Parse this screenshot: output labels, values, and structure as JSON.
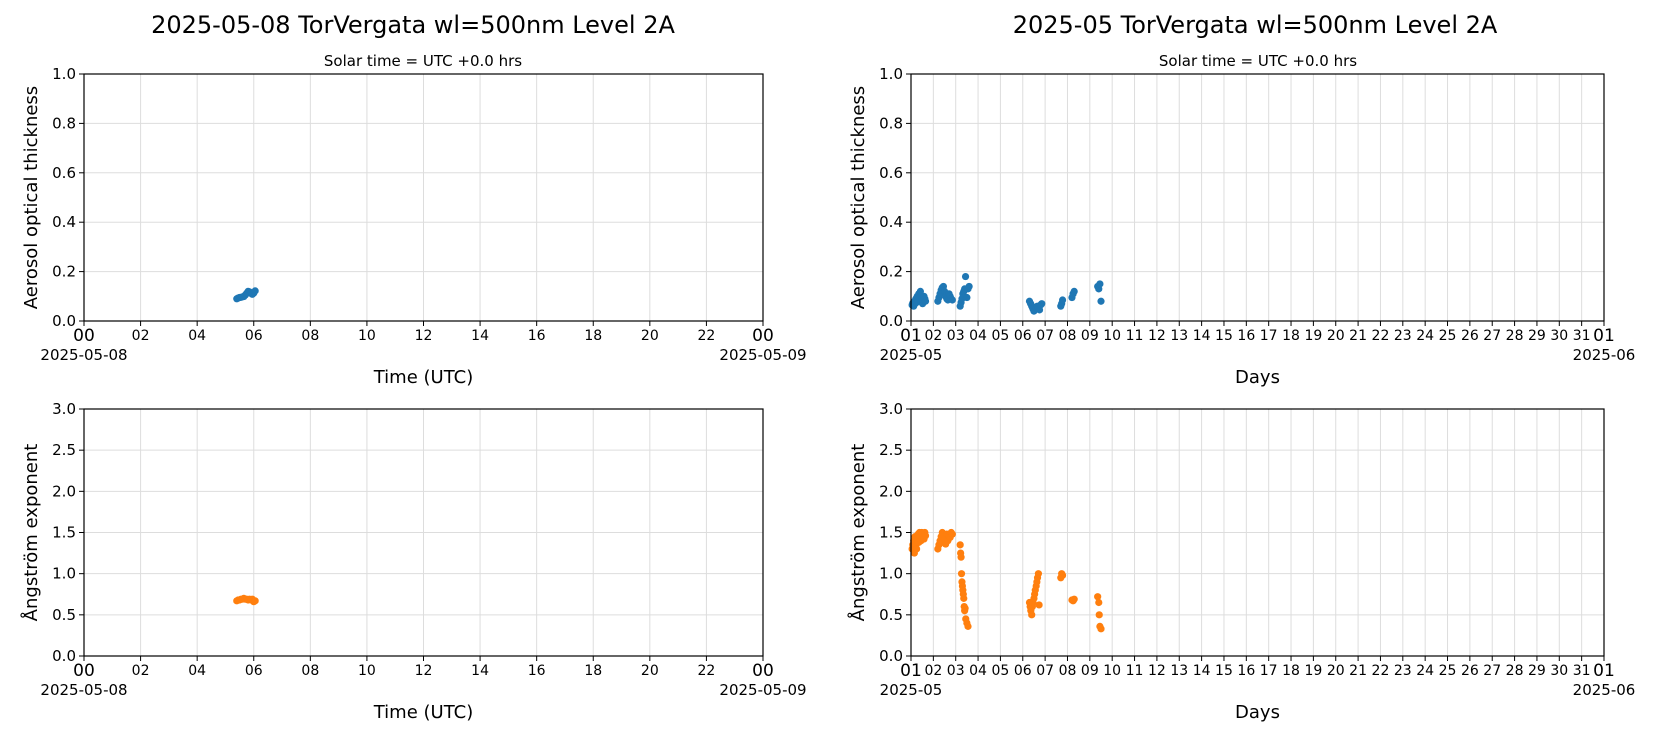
{
  "colors": {
    "aot": "#1f77b4",
    "angstrom": "#ff7f0e"
  },
  "panels_top": [
    {
      "title": "2025-05-08  TorVergata  wl=500nm  Level 2A",
      "subtitle": "Solar time = UTC +0.0 hrs"
    },
    {
      "title": "2025-05  TorVergata  wl=500nm  Level 2A",
      "subtitle": "Solar time = UTC +0.0 hrs"
    }
  ],
  "chart_data": [
    {
      "type": "scatter",
      "id": "daily-aot",
      "title": "2025-05-08  TorVergata  wl=500nm  Level 2A",
      "subtitle": "Solar time = UTC +0.0 hrs",
      "xlabel": "Time (UTC)",
      "ylabel": "Aerosol optical thickness",
      "x_unit": "hours UTC",
      "xlim": [
        0,
        24
      ],
      "ylim": [
        0,
        1.0
      ],
      "yticks": [
        "0.0",
        "0.2",
        "0.4",
        "0.6",
        "0.8",
        "1.0"
      ],
      "xticks": [
        "00",
        "02",
        "04",
        "06",
        "08",
        "10",
        "12",
        "14",
        "16",
        "18",
        "20",
        "22",
        "00"
      ],
      "x_date_labels": [
        "2025-05-08",
        "2025-05-09"
      ],
      "grid": true,
      "series": [
        {
          "color": "#1f77b4",
          "points": [
            [
              5.4,
              0.09
            ],
            [
              5.45,
              0.093
            ],
            [
              5.5,
              0.095
            ],
            [
              5.55,
              0.096
            ],
            [
              5.6,
              0.098
            ],
            [
              5.65,
              0.099
            ],
            [
              5.7,
              0.105
            ],
            [
              5.75,
              0.112
            ],
            [
              5.8,
              0.12
            ],
            [
              5.85,
              0.118
            ],
            [
              5.9,
              0.112
            ],
            [
              5.95,
              0.108
            ],
            [
              6.0,
              0.113
            ],
            [
              6.05,
              0.122
            ]
          ]
        }
      ]
    },
    {
      "type": "scatter",
      "id": "monthly-aot",
      "title": "2025-05  TorVergata  wl=500nm  Level 2A",
      "subtitle": "Solar time = UTC +0.0 hrs",
      "xlabel": "Days",
      "ylabel": "Aerosol optical thickness",
      "x_unit": "day of month",
      "xlim": [
        1,
        32
      ],
      "ylim": [
        0,
        1.0
      ],
      "yticks": [
        "0.0",
        "0.2",
        "0.4",
        "0.6",
        "0.8",
        "1.0"
      ],
      "xticks": [
        "01",
        "02",
        "03",
        "04",
        "05",
        "06",
        "07",
        "08",
        "09",
        "10",
        "11",
        "12",
        "13",
        "14",
        "15",
        "16",
        "17",
        "18",
        "19",
        "20",
        "21",
        "22",
        "23",
        "24",
        "25",
        "26",
        "27",
        "28",
        "29",
        "30",
        "31",
        "01"
      ],
      "x_date_labels": [
        "2025-05",
        "2025-06"
      ],
      "grid": true,
      "series": [
        {
          "color": "#1f77b4",
          "points": [
            [
              1.05,
              0.065
            ],
            [
              1.08,
              0.072
            ],
            [
              1.12,
              0.06
            ],
            [
              1.15,
              0.08
            ],
            [
              1.18,
              0.07
            ],
            [
              1.22,
              0.09
            ],
            [
              1.25,
              0.075
            ],
            [
              1.28,
              0.1
            ],
            [
              1.32,
              0.085
            ],
            [
              1.35,
              0.11
            ],
            [
              1.38,
              0.095
            ],
            [
              1.42,
              0.12
            ],
            [
              1.45,
              0.08
            ],
            [
              1.48,
              0.09
            ],
            [
              1.52,
              0.07
            ],
            [
              1.55,
              0.085
            ],
            [
              1.58,
              0.1
            ],
            [
              1.62,
              0.09
            ],
            [
              1.65,
              0.08
            ],
            [
              2.2,
              0.08
            ],
            [
              2.25,
              0.095
            ],
            [
              2.3,
              0.11
            ],
            [
              2.35,
              0.125
            ],
            [
              2.4,
              0.135
            ],
            [
              2.45,
              0.14
            ],
            [
              2.5,
              0.12
            ],
            [
              2.55,
              0.1
            ],
            [
              2.6,
              0.09
            ],
            [
              2.65,
              0.085
            ],
            [
              2.7,
              0.11
            ],
            [
              2.75,
              0.1
            ],
            [
              2.8,
              0.09
            ],
            [
              2.85,
              0.085
            ],
            [
              3.2,
              0.06
            ],
            [
              3.24,
              0.075
            ],
            [
              3.28,
              0.09
            ],
            [
              3.32,
              0.11
            ],
            [
              3.36,
              0.12
            ],
            [
              3.4,
              0.13
            ],
            [
              3.44,
              0.18
            ],
            [
              3.5,
              0.095
            ],
            [
              3.55,
              0.13
            ],
            [
              3.6,
              0.14
            ],
            [
              6.3,
              0.08
            ],
            [
              6.35,
              0.07
            ],
            [
              6.4,
              0.06
            ],
            [
              6.45,
              0.05
            ],
            [
              6.5,
              0.04
            ],
            [
              6.55,
              0.045
            ],
            [
              6.6,
              0.05
            ],
            [
              6.65,
              0.06
            ],
            [
              6.7,
              0.055
            ],
            [
              6.75,
              0.045
            ],
            [
              6.8,
              0.065
            ],
            [
              6.85,
              0.07
            ],
            [
              7.7,
              0.06
            ],
            [
              7.74,
              0.07
            ],
            [
              7.78,
              0.085
            ],
            [
              8.2,
              0.095
            ],
            [
              8.25,
              0.11
            ],
            [
              8.3,
              0.12
            ],
            [
              9.35,
              0.14
            ],
            [
              9.4,
              0.13
            ],
            [
              9.45,
              0.15
            ],
            [
              9.5,
              0.08
            ]
          ]
        }
      ]
    },
    {
      "type": "scatter",
      "id": "daily-angstrom",
      "xlabel": "Time (UTC)",
      "ylabel": "Ångström exponent",
      "x_unit": "hours UTC",
      "xlim": [
        0,
        24
      ],
      "ylim": [
        0,
        3.0
      ],
      "yticks": [
        "0.0",
        "0.5",
        "1.0",
        "1.5",
        "2.0",
        "2.5",
        "3.0"
      ],
      "xticks": [
        "00",
        "02",
        "04",
        "06",
        "08",
        "10",
        "12",
        "14",
        "16",
        "18",
        "20",
        "22",
        "00"
      ],
      "x_date_labels": [
        "2025-05-08",
        "2025-05-09"
      ],
      "grid": true,
      "series": [
        {
          "color": "#ff7f0e",
          "points": [
            [
              5.4,
              0.67
            ],
            [
              5.45,
              0.68
            ],
            [
              5.5,
              0.68
            ],
            [
              5.55,
              0.69
            ],
            [
              5.6,
              0.69
            ],
            [
              5.65,
              0.7
            ],
            [
              5.7,
              0.69
            ],
            [
              5.75,
              0.69
            ],
            [
              5.8,
              0.68
            ],
            [
              5.85,
              0.69
            ],
            [
              5.9,
              0.68
            ],
            [
              5.95,
              0.69
            ],
            [
              6.0,
              0.66
            ],
            [
              6.05,
              0.67
            ]
          ]
        }
      ]
    },
    {
      "type": "scatter",
      "id": "monthly-angstrom",
      "xlabel": "Days",
      "ylabel": "Ångström exponent",
      "x_unit": "day of month",
      "xlim": [
        1,
        32
      ],
      "ylim": [
        0,
        3.0
      ],
      "yticks": [
        "0.0",
        "0.5",
        "1.0",
        "1.5",
        "2.0",
        "2.5",
        "3.0"
      ],
      "xticks": [
        "01",
        "02",
        "03",
        "04",
        "05",
        "06",
        "07",
        "08",
        "09",
        "10",
        "11",
        "12",
        "13",
        "14",
        "15",
        "16",
        "17",
        "18",
        "19",
        "20",
        "21",
        "22",
        "23",
        "24",
        "25",
        "26",
        "27",
        "28",
        "29",
        "30",
        "31",
        "01"
      ],
      "x_date_labels": [
        "2025-05",
        "2025-06"
      ],
      "grid": true,
      "series": [
        {
          "color": "#ff7f0e",
          "points": [
            [
              1.05,
              1.3
            ],
            [
              1.08,
              1.35
            ],
            [
              1.12,
              1.4
            ],
            [
              1.15,
              1.25
            ],
            [
              1.18,
              1.45
            ],
            [
              1.22,
              1.35
            ],
            [
              1.25,
              1.3
            ],
            [
              1.28,
              1.42
            ],
            [
              1.32,
              1.48
            ],
            [
              1.35,
              1.38
            ],
            [
              1.38,
              1.5
            ],
            [
              1.42,
              1.45
            ],
            [
              1.45,
              1.4
            ],
            [
              1.48,
              1.5
            ],
            [
              1.52,
              1.48
            ],
            [
              1.55,
              1.45
            ],
            [
              1.58,
              1.42
            ],
            [
              1.62,
              1.5
            ],
            [
              1.65,
              1.46
            ],
            [
              2.2,
              1.3
            ],
            [
              2.25,
              1.35
            ],
            [
              2.3,
              1.4
            ],
            [
              2.35,
              1.45
            ],
            [
              2.4,
              1.5
            ],
            [
              2.45,
              1.38
            ],
            [
              2.5,
              1.42
            ],
            [
              2.55,
              1.36
            ],
            [
              2.6,
              1.48
            ],
            [
              2.65,
              1.4
            ],
            [
              2.7,
              1.46
            ],
            [
              2.75,
              1.44
            ],
            [
              2.8,
              1.5
            ],
            [
              2.85,
              1.48
            ],
            [
              3.2,
              1.35
            ],
            [
              3.22,
              1.25
            ],
            [
              3.24,
              1.2
            ],
            [
              3.26,
              1.0
            ],
            [
              3.28,
              0.9
            ],
            [
              3.3,
              0.85
            ],
            [
              3.32,
              0.8
            ],
            [
              3.34,
              0.75
            ],
            [
              3.36,
              0.7
            ],
            [
              3.38,
              0.6
            ],
            [
              3.4,
              0.55
            ],
            [
              3.42,
              0.58
            ],
            [
              3.45,
              0.45
            ],
            [
              3.5,
              0.4
            ],
            [
              3.55,
              0.36
            ],
            [
              6.3,
              0.65
            ],
            [
              6.33,
              0.6
            ],
            [
              6.36,
              0.55
            ],
            [
              6.4,
              0.5
            ],
            [
              6.43,
              0.6
            ],
            [
              6.46,
              0.65
            ],
            [
              6.5,
              0.7
            ],
            [
              6.53,
              0.75
            ],
            [
              6.56,
              0.8
            ],
            [
              6.6,
              0.85
            ],
            [
              6.63,
              0.9
            ],
            [
              6.66,
              0.95
            ],
            [
              6.7,
              1.0
            ],
            [
              6.73,
              0.62
            ],
            [
              7.7,
              0.95
            ],
            [
              7.74,
              1.0
            ],
            [
              7.78,
              0.98
            ],
            [
              8.2,
              0.68
            ],
            [
              8.25,
              0.67
            ],
            [
              8.3,
              0.69
            ],
            [
              9.35,
              0.72
            ],
            [
              9.4,
              0.65
            ],
            [
              9.42,
              0.5
            ],
            [
              9.45,
              0.36
            ],
            [
              9.5,
              0.33
            ]
          ]
        }
      ]
    }
  ]
}
